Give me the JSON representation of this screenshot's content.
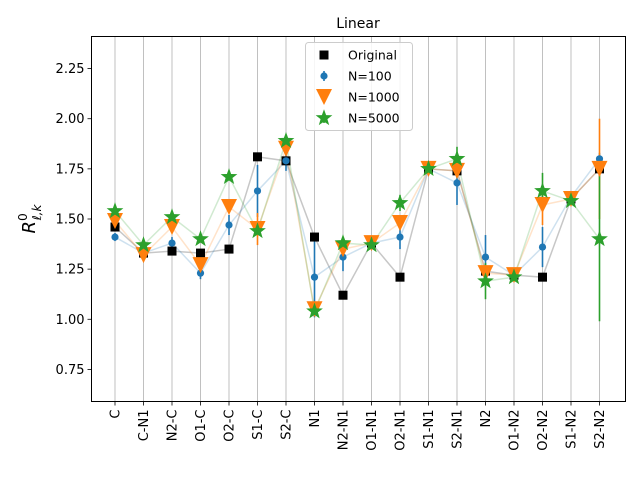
{
  "chart_data": {
    "type": "scatter",
    "title": "Linear",
    "ylabel": "R^0_{ℓ,k}",
    "ylabel_parts": {
      "base": "R",
      "sup": "0",
      "sub": "ℓ,k"
    },
    "xlabel": "",
    "ylim": [
      0.59,
      2.41
    ],
    "yticks": [
      "0.75",
      "1.00",
      "1.25",
      "1.50",
      "1.75",
      "2.00",
      "2.25"
    ],
    "grid": "vertical",
    "legend_position": "top-center",
    "categories": [
      "C",
      "C-N1",
      "N2-C",
      "O1-C",
      "O2-C",
      "S1-C",
      "S2-C",
      "N1",
      "N2-N1",
      "O1-N1",
      "O2-N1",
      "S1-N1",
      "S2-N1",
      "N2",
      "O1-N2",
      "O2-N2",
      "S1-N2",
      "S2-N2"
    ],
    "series": [
      {
        "name": "Original",
        "marker": "square",
        "color": "#000000",
        "values": [
          1.46,
          1.33,
          1.34,
          1.33,
          1.35,
          1.81,
          1.79,
          1.41,
          1.12,
          1.38,
          1.21,
          1.75,
          1.74,
          1.24,
          1.22,
          1.21,
          1.6,
          1.75
        ]
      },
      {
        "name": "N=100",
        "marker": "circle",
        "color": "#1f77b4",
        "values": [
          1.41,
          1.33,
          1.38,
          1.23,
          1.47,
          1.64,
          1.79,
          1.21,
          1.31,
          1.38,
          1.41,
          1.75,
          1.68,
          1.31,
          1.22,
          1.36,
          1.61,
          1.8
        ],
        "errors": [
          0.02,
          0.01,
          0.03,
          0.03,
          0.05,
          0.13,
          0.05,
          0.2,
          0.07,
          0.02,
          0.06,
          0.02,
          0.11,
          0.11,
          0.01,
          0.1,
          0.02,
          0.03
        ]
      },
      {
        "name": "N=1000",
        "marker": "triangle-down",
        "color": "#ff7f0e",
        "values": [
          1.49,
          1.32,
          1.46,
          1.27,
          1.56,
          1.45,
          1.85,
          1.05,
          1.35,
          1.38,
          1.48,
          1.75,
          1.74,
          1.23,
          1.22,
          1.57,
          1.6,
          1.75
        ],
        "errors": [
          0.01,
          0.01,
          0.02,
          0.02,
          0.02,
          0.08,
          0.02,
          0.01,
          0.02,
          0.02,
          0.02,
          0.02,
          0.02,
          0.02,
          0.01,
          0.1,
          0.02,
          0.25
        ]
      },
      {
        "name": "N=5000",
        "marker": "star",
        "color": "#2ca02c",
        "values": [
          1.54,
          1.37,
          1.51,
          1.4,
          1.71,
          1.44,
          1.89,
          1.04,
          1.38,
          1.37,
          1.58,
          1.75,
          1.8,
          1.19,
          1.21,
          1.64,
          1.59,
          1.4
        ],
        "errors": [
          0.01,
          0.01,
          0.01,
          0.01,
          0.01,
          0.02,
          0.02,
          0.01,
          0.01,
          0.01,
          0.04,
          0.01,
          0.06,
          0.09,
          0.01,
          0.09,
          0.01,
          0.41
        ]
      }
    ]
  }
}
